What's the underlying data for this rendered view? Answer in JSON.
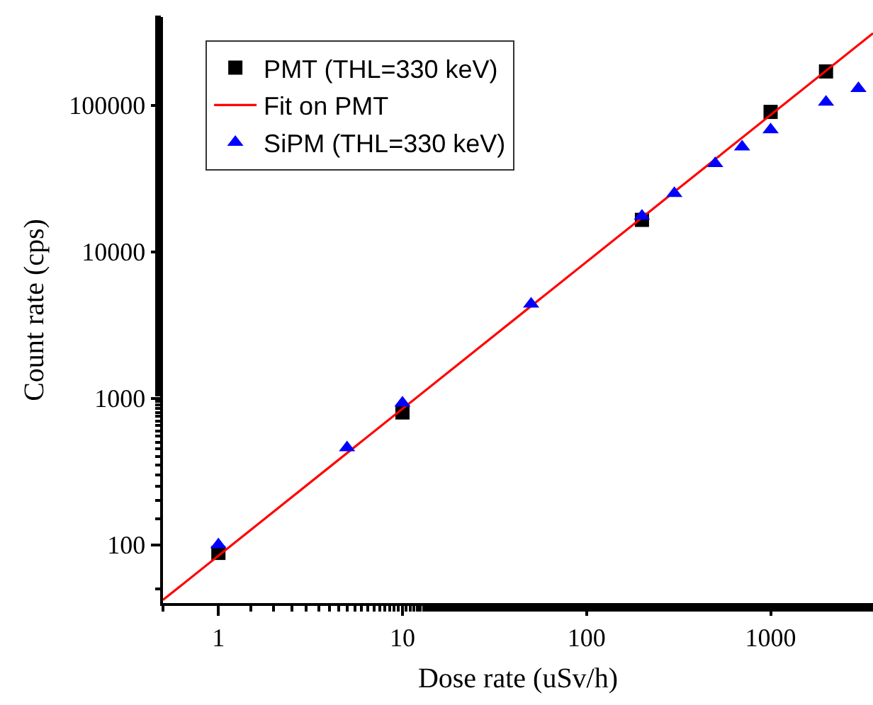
{
  "chart_data": {
    "type": "scatter",
    "xlabel": "Dose rate (uSv/h)",
    "ylabel": "Count rate (cps)",
    "log": "xy",
    "grid": false,
    "legend": "top left",
    "xlim": [
      0.5,
      3600
    ],
    "xticks": [
      1,
      10,
      100,
      1000
    ],
    "ylim": [
      40,
      400000
    ],
    "yticks": [
      100,
      1000,
      10000,
      100000
    ],
    "series": [
      {
        "name": "PMT (THL=330 keV)",
        "color": "#000000",
        "marker": "square",
        "x": [
          1,
          10,
          200,
          1000,
          2000
        ],
        "values": [
          88,
          800,
          16500,
          90000,
          170000
        ]
      },
      {
        "name": "Fit on PMT",
        "type": "line",
        "color": "#ff0000",
        "marker": "none",
        "x": [
          0.5,
          3600
        ],
        "values": [
          42,
          310000
        ]
      },
      {
        "name": "SiPM (THL=330 keV)",
        "color": "#0000ff",
        "marker": "triangle",
        "x": [
          1,
          5,
          10,
          50,
          200,
          300,
          500,
          700,
          1000,
          2000,
          3000
        ],
        "values": [
          100,
          460,
          930,
          4400,
          17500,
          25000,
          40000,
          52000,
          68000,
          105000,
          130000
        ]
      }
    ]
  }
}
